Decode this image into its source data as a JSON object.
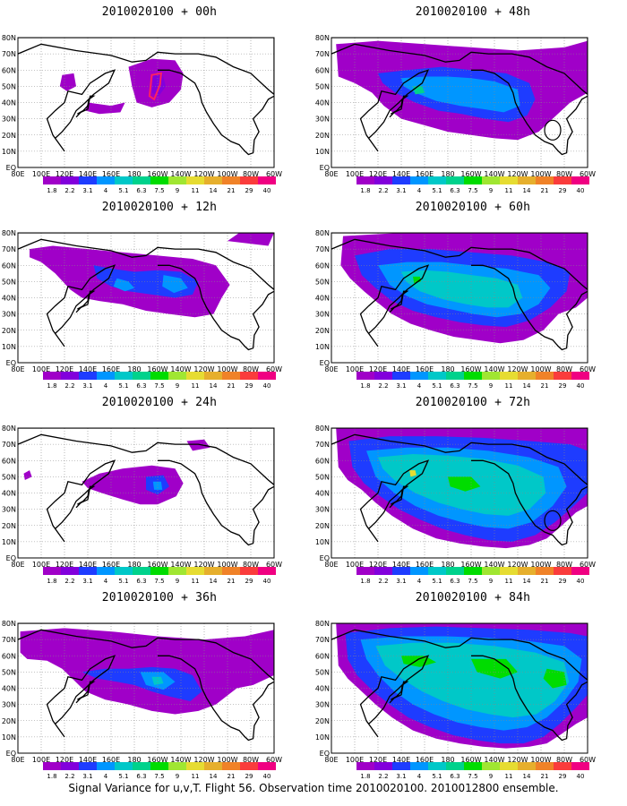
{
  "caption": "Signal Variance for u,v,T. Flight 56. Observation time 2010020100. 2010012800 ensemble.",
  "map": {
    "lat_labels": [
      "80N",
      "70N",
      "60N",
      "50N",
      "40N",
      "30N",
      "20N",
      "10N",
      "EQ"
    ],
    "lon_labels": [
      "80E",
      "100E",
      "120E",
      "140E",
      "160E",
      "180",
      "160W",
      "140W",
      "120W",
      "100W",
      "80W",
      "60W"
    ],
    "lon_range": [
      80,
      300
    ],
    "lat_range": [
      0,
      80
    ]
  },
  "colorbar": {
    "labels": [
      "1.8",
      "2.2",
      "3.1",
      "4",
      "5.1",
      "6.3",
      "7.5",
      "9",
      "11",
      "14",
      "21",
      "29",
      "40"
    ],
    "colors": [
      "#a000c8",
      "#8200dc",
      "#1e3cff",
      "#0096ff",
      "#00c8c8",
      "#00d28c",
      "#00dc00",
      "#a0e632",
      "#e6dc32",
      "#e6af2d",
      "#f08228",
      "#fa3c3c",
      "#f00082"
    ]
  },
  "panels": [
    {
      "title": "2010020100 + 00h",
      "level": 0
    },
    {
      "title": "2010020100 + 48h",
      "level": 4
    },
    {
      "title": "2010020100 + 12h",
      "level": 1
    },
    {
      "title": "2010020100 + 60h",
      "level": 5
    },
    {
      "title": "2010020100 + 24h",
      "level": 2
    },
    {
      "title": "2010020100 + 72h",
      "level": 6
    },
    {
      "title": "2010020100 + 36h",
      "level": 3
    },
    {
      "title": "2010020100 + 84h",
      "level": 7
    }
  ]
}
